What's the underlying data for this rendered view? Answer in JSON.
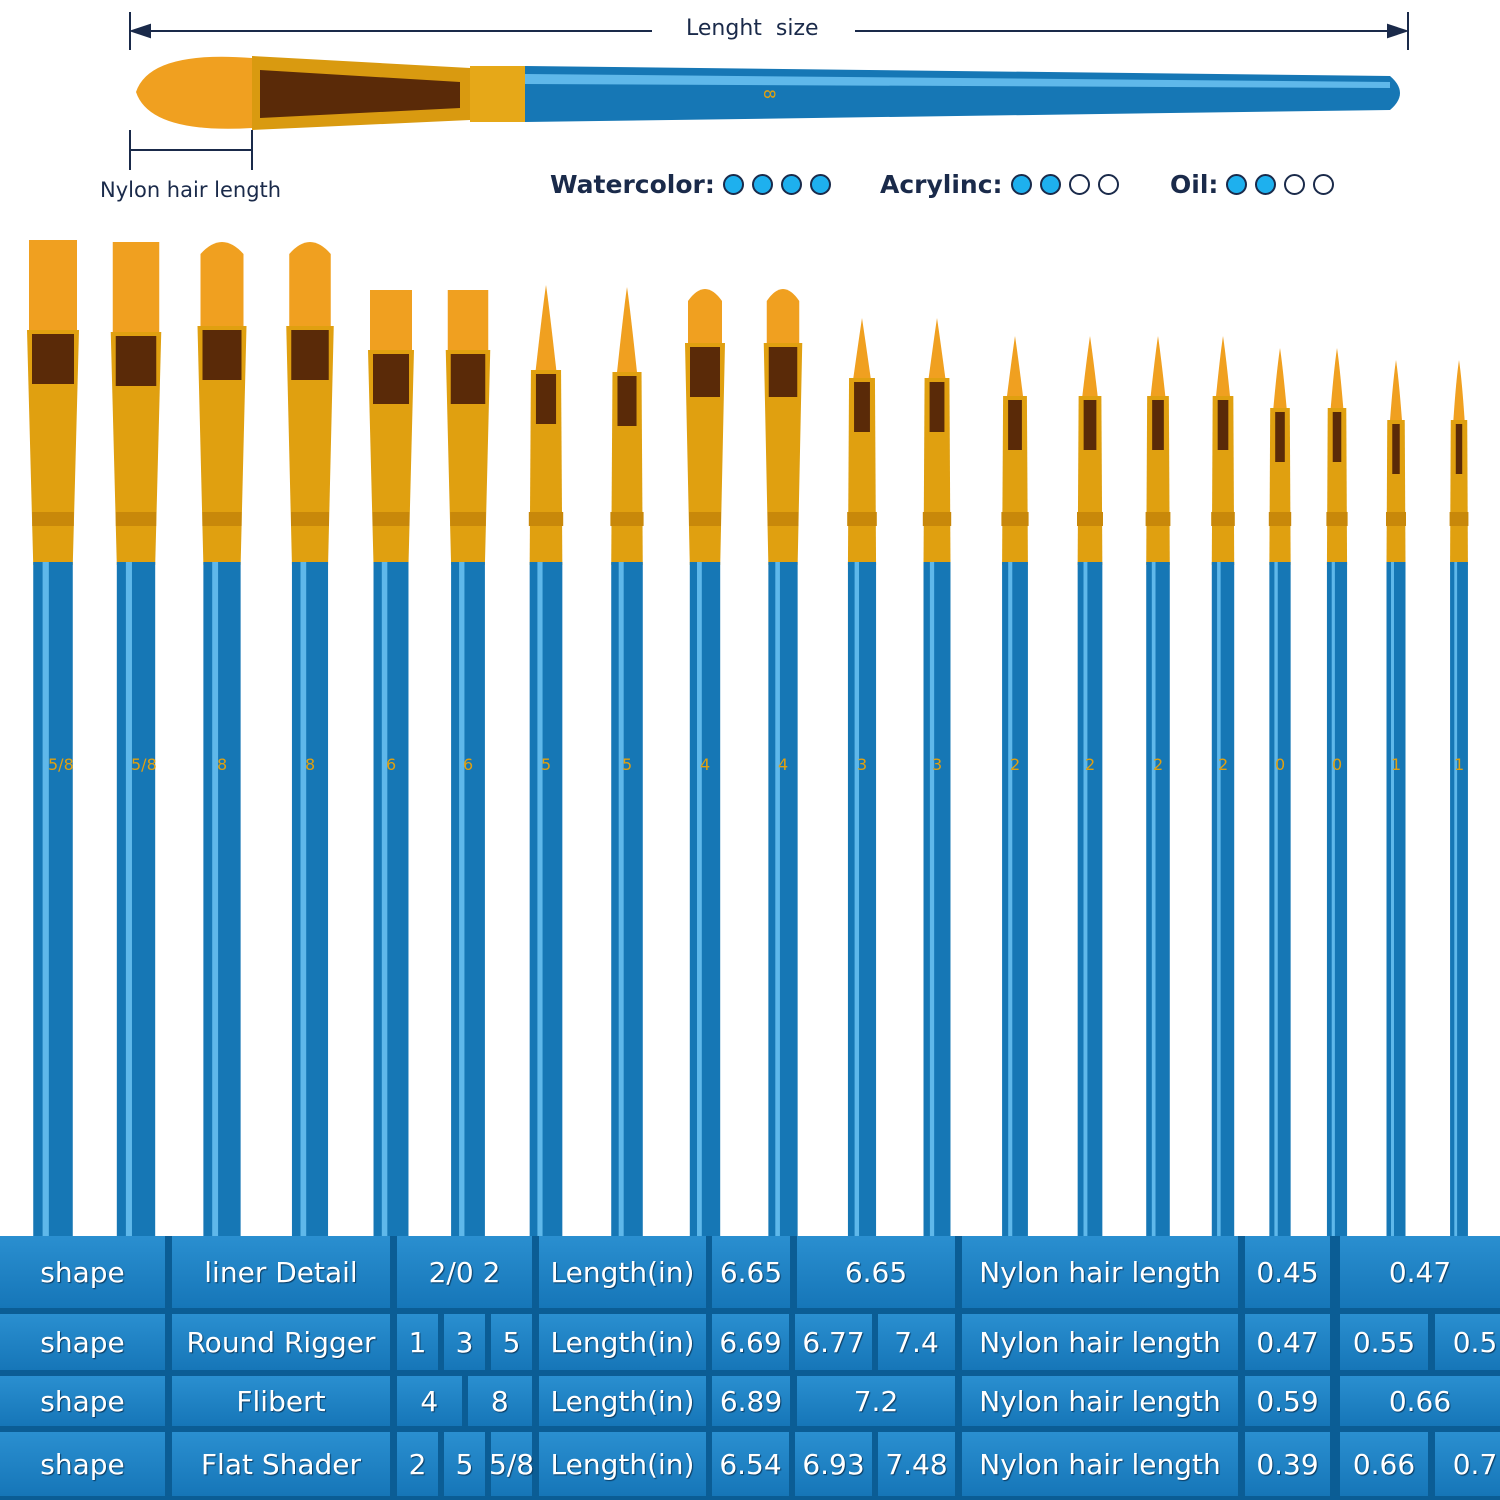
{
  "header": {
    "length_label": "Lenght  size",
    "nylon_label": "Nylon hair length",
    "sample_brush_size": "8"
  },
  "ratings": [
    {
      "label": "Watercolor:",
      "filled": 4,
      "total": 4
    },
    {
      "label": "Acrylinc:",
      "filled": 2,
      "total": 4
    },
    {
      "label": "Oil:",
      "filled": 2,
      "total": 4
    }
  ],
  "colors": {
    "handle": "#1677b5",
    "ferrule": "#e0a010",
    "hair": "#f0a020",
    "table": "#1676b8"
  },
  "brushes": [
    {
      "size": "5/8",
      "shape": "flat"
    },
    {
      "size": "5/8",
      "shape": "flat"
    },
    {
      "size": "8",
      "shape": "filbert"
    },
    {
      "size": "8",
      "shape": "filbert"
    },
    {
      "size": "6",
      "shape": "flat"
    },
    {
      "size": "6",
      "shape": "flat"
    },
    {
      "size": "5",
      "shape": "round"
    },
    {
      "size": "5",
      "shape": "round"
    },
    {
      "size": "4",
      "shape": "filbert"
    },
    {
      "size": "4",
      "shape": "filbert"
    },
    {
      "size": "3",
      "shape": "round"
    },
    {
      "size": "3",
      "shape": "round"
    },
    {
      "size": "2",
      "shape": "round"
    },
    {
      "size": "2",
      "shape": "round"
    },
    {
      "size": "2",
      "shape": "round"
    },
    {
      "size": "2",
      "shape": "round"
    },
    {
      "size": "0",
      "shape": "round"
    },
    {
      "size": "0",
      "shape": "round"
    },
    {
      "size": "1",
      "shape": "round"
    },
    {
      "size": "1",
      "shape": "round"
    }
  ],
  "table": {
    "rows": [
      {
        "shape": "shape",
        "name": "liner Detail",
        "sizes": [
          "2/0 2"
        ],
        "length_label": "Length(in)",
        "lengths": [
          "6.65",
          "6.65"
        ],
        "hair_label": "Nylon hair length",
        "hair": [
          "0.45",
          "0.47"
        ]
      },
      {
        "shape": "shape",
        "name": "Round Rigger",
        "sizes": [
          "1",
          "3",
          "5"
        ],
        "length_label": "Length(in)",
        "lengths": [
          "6.69",
          "6.77",
          "7.4"
        ],
        "hair_label": "Nylon hair length",
        "hair": [
          "0.47",
          "0.55",
          "0.5"
        ]
      },
      {
        "shape": "shape",
        "name": "Flibert",
        "sizes": [
          "4",
          "8"
        ],
        "length_label": "Length(in)",
        "lengths": [
          "6.89",
          "7.2"
        ],
        "hair_label": "Nylon hair length",
        "hair": [
          "0.59",
          "0.66"
        ]
      },
      {
        "shape": "shape",
        "name": "Flat Shader",
        "sizes": [
          "2",
          "5",
          "5/8"
        ],
        "length_label": "Length(in)",
        "lengths": [
          "6.54",
          "6.93",
          "7.48"
        ],
        "hair_label": "Nylon hair length",
        "hair": [
          "0.39",
          "0.66",
          "0.7"
        ]
      }
    ]
  }
}
